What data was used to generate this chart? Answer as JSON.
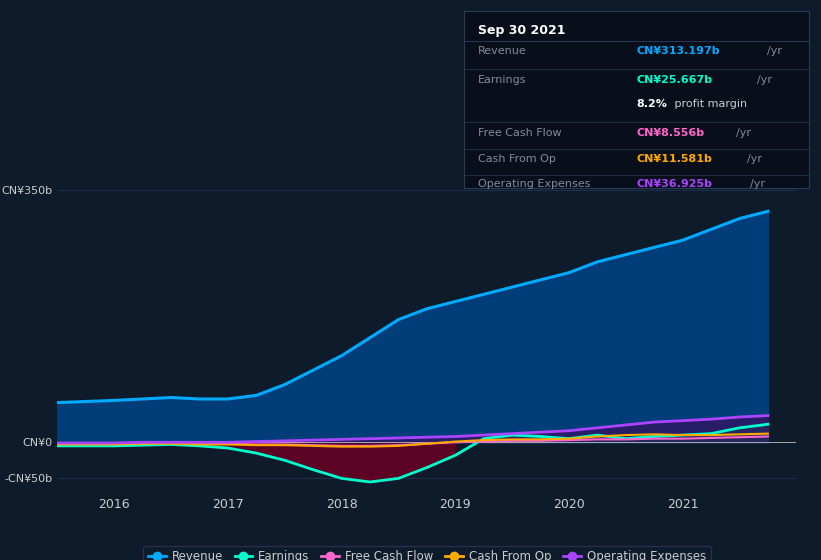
{
  "background_color": "#0d1b2a",
  "plot_bg_color": "#0d1b2a",
  "grid_color": "#1e3050",
  "ylabel_color": "#cccccc",
  "title": "Sep 30 2021",
  "tooltip": {
    "date": "Sep 30 2021",
    "revenue": "CN¥313.197b",
    "earnings": "CN¥25.667b",
    "profit_margin": "8.2%",
    "free_cash_flow": "CN¥8.556b",
    "cash_from_op": "CN¥11.581b",
    "op_expenses": "CN¥36.925b"
  },
  "yticks": [
    -50,
    0,
    350
  ],
  "ytick_labels": [
    "-CN¥50b",
    "CN¥0",
    "CN¥350b"
  ],
  "xtick_labels": [
    "2016",
    "2017",
    "2018",
    "2019",
    "2020",
    "2021"
  ],
  "legend": [
    {
      "label": "Revenue",
      "color": "#00aaff"
    },
    {
      "label": "Earnings",
      "color": "#00ffcc"
    },
    {
      "label": "Free Cash Flow",
      "color": "#ff66cc"
    },
    {
      "label": "Cash From Op",
      "color": "#ffaa00"
    },
    {
      "label": "Operating Expenses",
      "color": "#aa44ff"
    }
  ],
  "revenue": {
    "x": [
      2015.5,
      2016.0,
      2016.25,
      2016.5,
      2016.75,
      2017.0,
      2017.25,
      2017.5,
      2017.75,
      2018.0,
      2018.25,
      2018.5,
      2018.75,
      2019.0,
      2019.25,
      2019.5,
      2019.75,
      2020.0,
      2020.25,
      2020.5,
      2020.75,
      2021.0,
      2021.25,
      2021.5,
      2021.75
    ],
    "y": [
      55,
      58,
      60,
      62,
      60,
      60,
      65,
      80,
      100,
      120,
      145,
      170,
      185,
      195,
      205,
      215,
      225,
      235,
      250,
      260,
      270,
      280,
      295,
      310,
      320
    ]
  },
  "earnings": {
    "x": [
      2015.5,
      2016.0,
      2016.25,
      2016.5,
      2016.75,
      2017.0,
      2017.25,
      2017.5,
      2017.75,
      2018.0,
      2018.25,
      2018.5,
      2018.75,
      2019.0,
      2019.25,
      2019.5,
      2019.75,
      2020.0,
      2020.25,
      2020.5,
      2020.75,
      2021.0,
      2021.25,
      2021.5,
      2021.75
    ],
    "y": [
      -5,
      -5,
      -4,
      -3,
      -5,
      -8,
      -15,
      -25,
      -38,
      -50,
      -55,
      -50,
      -35,
      -18,
      5,
      10,
      8,
      5,
      10,
      5,
      8,
      10,
      12,
      20,
      25
    ]
  },
  "free_cash_flow": {
    "x": [
      2015.5,
      2016.0,
      2016.25,
      2016.5,
      2016.75,
      2017.0,
      2017.25,
      2017.5,
      2017.75,
      2018.0,
      2018.25,
      2018.5,
      2018.75,
      2019.0,
      2019.25,
      2019.5,
      2019.75,
      2020.0,
      2020.25,
      2020.5,
      2020.75,
      2021.0,
      2021.25,
      2021.5,
      2021.75
    ],
    "y": [
      -2,
      -2,
      -1,
      -1,
      -2,
      -2,
      -3,
      -3,
      -4,
      -5,
      -5,
      -4,
      -2,
      0,
      1,
      2,
      2,
      3,
      4,
      4,
      5,
      5,
      6,
      7,
      8
    ]
  },
  "cash_from_op": {
    "x": [
      2015.5,
      2016.0,
      2016.25,
      2016.5,
      2016.75,
      2017.0,
      2017.25,
      2017.5,
      2017.75,
      2018.0,
      2018.25,
      2018.5,
      2018.75,
      2019.0,
      2019.25,
      2019.5,
      2019.75,
      2020.0,
      2020.25,
      2020.5,
      2020.75,
      2021.0,
      2021.25,
      2021.5,
      2021.75
    ],
    "y": [
      -3,
      -3,
      -2,
      -2,
      -3,
      -3,
      -4,
      -4,
      -5,
      -6,
      -6,
      -5,
      -2,
      1,
      3,
      4,
      4,
      5,
      8,
      10,
      11,
      10,
      10,
      11,
      12
    ]
  },
  "op_expenses": {
    "x": [
      2015.5,
      2016.0,
      2016.25,
      2016.5,
      2016.75,
      2017.0,
      2017.25,
      2017.5,
      2017.75,
      2018.0,
      2018.25,
      2018.5,
      2018.75,
      2019.0,
      2019.25,
      2019.5,
      2019.75,
      2020.0,
      2020.25,
      2020.5,
      2020.75,
      2021.0,
      2021.25,
      2021.5,
      2021.75
    ],
    "y": [
      -1,
      -1,
      0,
      0,
      0,
      0,
      1,
      2,
      3,
      4,
      5,
      6,
      7,
      8,
      10,
      12,
      14,
      16,
      20,
      24,
      28,
      30,
      32,
      35,
      37
    ]
  },
  "zero_line_color": "#aaaaaa",
  "revenue_color": "#00aaff",
  "revenue_fill_color": "#004488",
  "earnings_color": "#00ffcc",
  "earnings_fill_neg_color": "#660022",
  "earnings_fill_pos_color": "#007755",
  "free_cash_flow_color": "#ff66cc",
  "cash_from_op_color": "#ffaa00",
  "op_expenses_color": "#aa44ff",
  "op_expenses_fill_color": "#3a1060",
  "tooltip_bg": "#080e1a",
  "tooltip_border": "#2a3a5a"
}
